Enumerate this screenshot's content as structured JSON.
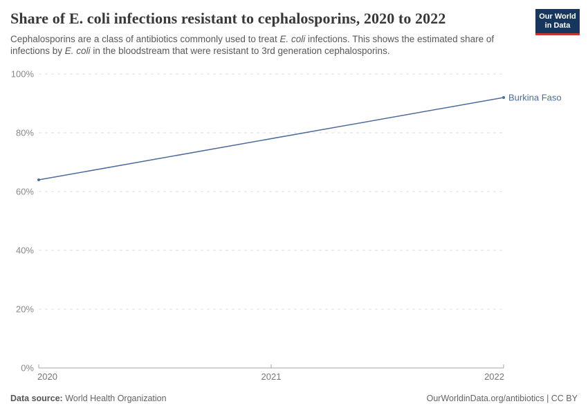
{
  "header": {
    "title": "Share of E. coli infections resistant to cephalosporins, 2020 to 2022",
    "logo": {
      "line1": "Our World",
      "line2": "in Data",
      "bg_color": "#16365d",
      "accent_color": "#c5362c"
    }
  },
  "subtitle_segments": [
    {
      "text": "Cephalosporins are a class of antibiotics commonly used to treat ",
      "italic": false
    },
    {
      "text": "E. coli",
      "italic": true
    },
    {
      "text": " infections. This shows the estimated share of infections by ",
      "italic": false
    },
    {
      "text": "E. coli",
      "italic": true
    },
    {
      "text": " in the bloodstream that were resistant to 3rd generation cephalosporins.",
      "italic": false
    }
  ],
  "chart_data": {
    "type": "line",
    "title": "Share of E. coli infections resistant to cephalosporins, 2020 to 2022",
    "x": [
      2020,
      2022
    ],
    "series": [
      {
        "name": "Burkina Faso",
        "values": [
          64,
          92
        ],
        "color": "#4c6a9c"
      }
    ],
    "x_ticks": [
      2020,
      2021,
      2022
    ],
    "y_ticks": [
      0,
      20,
      40,
      60,
      80,
      100
    ],
    "y_suffix": "%",
    "xlim": [
      2020,
      2022
    ],
    "ylim": [
      0,
      100
    ],
    "grid": "horizontal-dashed",
    "legend": "inline-end-label",
    "gridline_color": "#dcdcdc",
    "axis_color": "#a5a5a5"
  },
  "footer": {
    "source_label": "Data source:",
    "source_value": "World Health Organization",
    "attribution": "OurWorldinData.org/antibiotics | CC BY"
  }
}
